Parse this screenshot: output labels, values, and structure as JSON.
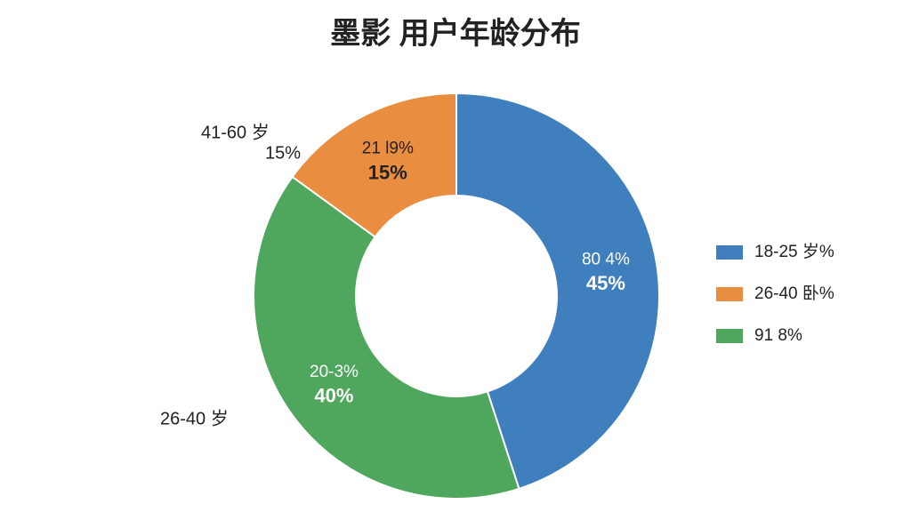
{
  "chart_data": {
    "type": "donut",
    "title": "墨影 用户年龄分布",
    "categories": [
      "18-25 岁%",
      "26-40 卧%",
      "91 8%"
    ],
    "values": [
      45,
      15,
      40
    ],
    "value_labels": [
      "45%",
      "15%",
      "40%"
    ],
    "inner_labels": [
      "80 4%",
      "21 l9%",
      "20-3%"
    ],
    "colors": [
      "#3f7fbd",
      "#e98d40",
      "#4fa65d"
    ],
    "annotations": [
      "41-60 岁",
      "15%",
      "26-40 岁"
    ]
  }
}
